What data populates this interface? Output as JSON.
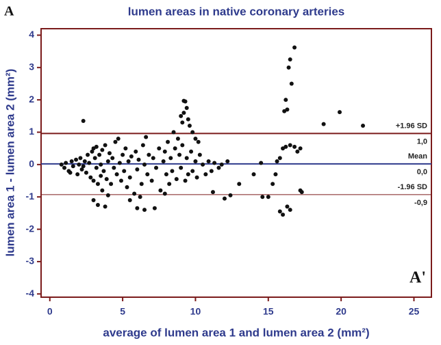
{
  "chart_data": {
    "type": "scatter",
    "panel_label": "A",
    "corner_label": "A'",
    "title": "lumen areas in native coronary arteries",
    "xlabel": "average of lumen area 1 and lumen area 2 (mm²)",
    "ylabel": "lumen area 1 - lumen area 2 (mm²)",
    "color": "#111111",
    "xlim": [
      -0.6,
      26.2
    ],
    "ylim": [
      -4.1,
      4.2
    ],
    "xticks": [
      0,
      5,
      10,
      15,
      20,
      25
    ],
    "yticks": [
      -4,
      -3,
      -2,
      -1,
      0,
      1,
      2,
      3,
      4
    ],
    "reference_lines": [
      {
        "value": 0.96,
        "label": "+1.96 SD",
        "value_label": "1,0",
        "color": "#7a1a1a"
      },
      {
        "value": 0.02,
        "label": "Mean",
        "value_label": "0,0",
        "color": "#2e3a8c"
      },
      {
        "value": -0.93,
        "label": "-1.96 SD",
        "value_label": "-0,9",
        "color": "#7a1a1a"
      }
    ],
    "x": [
      0.8,
      1.0,
      1.1,
      1.3,
      1.5,
      1.6,
      1.8,
      1.9,
      2.0,
      2.1,
      2.2,
      2.4,
      2.5,
      2.6,
      2.7,
      2.8,
      2.9,
      3.0,
      3.0,
      3.1,
      3.2,
      3.2,
      3.3,
      3.4,
      3.5,
      3.5,
      3.6,
      3.7,
      3.8,
      3.9,
      4.0,
      4.1,
      4.2,
      4.3,
      4.4,
      4.5,
      4.6,
      4.7,
      4.8,
      4.9,
      5.0,
      5.1,
      5.2,
      5.3,
      5.4,
      5.5,
      5.6,
      5.8,
      5.9,
      6.0,
      6.1,
      6.3,
      6.4,
      6.5,
      6.6,
      6.7,
      6.8,
      7.0,
      7.1,
      7.3,
      7.5,
      7.6,
      7.8,
      7.9,
      8.0,
      8.1,
      8.2,
      8.3,
      8.4,
      8.6,
      8.7,
      8.9,
      9.0,
      9.1,
      9.3,
      9.4,
      9.5,
      9.7,
      9.8,
      10.0,
      10.1,
      10.3,
      10.5,
      10.7,
      10.9,
      11.1,
      11.3,
      11.6,
      11.8,
      12.2,
      1.4,
      2.3,
      3.6,
      4.0,
      5.5,
      7.9,
      6.2,
      2.3,
      9.2,
      9.3,
      16.8,
      16.5,
      16.4,
      16.6,
      16.2,
      16.3,
      16.1,
      18.8,
      19.9,
      21.5,
      17.2,
      17.3,
      16.0,
      15.8,
      16.3,
      16.5,
      3.0,
      3.3,
      3.8,
      6.0,
      6.5,
      7.2,
      12.0,
      11.2,
      12.4,
      14.6,
      15.0,
      15.3,
      15.5,
      15.6,
      15.8,
      16.0,
      16.2,
      16.5,
      16.8,
      17.0,
      17.2,
      13.0,
      14.0,
      14.5,
      9.0,
      9.5,
      9.6,
      9.8,
      10.0,
      10.2,
      8.5,
      8.8,
      9.2,
      9.4,
      9.1
    ],
    "values": [
      0.0,
      -0.1,
      0.05,
      -0.2,
      0.1,
      -0.05,
      0.15,
      -0.3,
      0.0,
      0.2,
      -0.15,
      0.1,
      -0.25,
      0.3,
      0.05,
      -0.4,
      0.4,
      0.5,
      -0.5,
      0.2,
      -0.1,
      0.55,
      -0.6,
      0.3,
      0.0,
      -0.35,
      0.45,
      -0.2,
      0.6,
      -0.45,
      0.1,
      0.35,
      -0.6,
      0.2,
      -0.1,
      0.7,
      -0.3,
      0.8,
      0.05,
      -0.5,
      0.3,
      -0.2,
      0.5,
      -0.7,
      0.1,
      -0.4,
      0.25,
      -0.9,
      0.4,
      -0.15,
      0.15,
      -0.6,
      0.6,
      0.0,
      0.85,
      -0.3,
      0.3,
      -0.5,
      0.2,
      -0.1,
      0.5,
      -0.8,
      0.1,
      0.4,
      -0.3,
      0.7,
      -0.6,
      0.2,
      -0.2,
      0.5,
      -0.45,
      0.3,
      -0.1,
      0.6,
      -0.5,
      0.2,
      -0.3,
      0.4,
      -0.2,
      0.1,
      -0.4,
      0.3,
      0.0,
      -0.3,
      0.1,
      -0.2,
      0.05,
      -0.1,
      0.0,
      0.1,
      -0.25,
      -0.05,
      -0.8,
      -0.95,
      -1.1,
      -0.9,
      -1.0,
      1.35,
      1.97,
      1.95,
      3.62,
      3.25,
      3.0,
      2.5,
      2.0,
      1.7,
      1.65,
      1.25,
      1.62,
      1.2,
      -0.8,
      -0.85,
      -1.55,
      -1.45,
      -1.3,
      -1.4,
      -1.1,
      -1.25,
      -1.3,
      -1.35,
      -1.4,
      -1.35,
      -1.05,
      -0.85,
      -0.95,
      -1.0,
      -1.0,
      -0.6,
      -0.3,
      0.1,
      0.2,
      0.5,
      0.55,
      0.6,
      0.55,
      0.4,
      0.5,
      -0.6,
      -0.3,
      0.05,
      1.5,
      1.4,
      1.2,
      1.0,
      0.8,
      0.7,
      1.0,
      0.8,
      1.6,
      1.75,
      1.3
    ]
  }
}
